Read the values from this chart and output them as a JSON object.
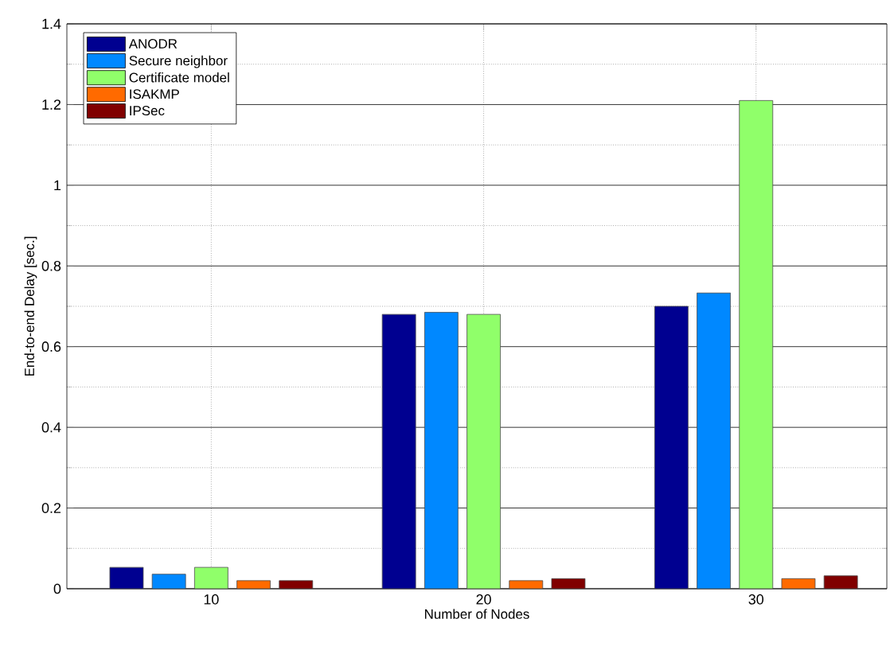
{
  "chart_data": {
    "type": "bar",
    "xlabel": "Number of Nodes",
    "ylabel": "End-to-end Delay [sec.]",
    "categories": [
      "10",
      "20",
      "30"
    ],
    "series": [
      {
        "name": "ANODR",
        "color": "#000090",
        "values": [
          0.053,
          0.68,
          0.7
        ]
      },
      {
        "name": "Secure neighbor",
        "color": "#0088ff",
        "values": [
          0.036,
          0.685,
          0.733
        ]
      },
      {
        "name": "Certificate model",
        "color": "#90ff6a",
        "values": [
          0.053,
          0.68,
          1.21
        ]
      },
      {
        "name": "ISAKMP",
        "color": "#ff6a00",
        "values": [
          0.02,
          0.02,
          0.025
        ]
      },
      {
        "name": "IPSec",
        "color": "#800000",
        "values": [
          0.02,
          0.025,
          0.032
        ]
      }
    ],
    "ylim": [
      0,
      1.4
    ],
    "yticks": [
      0,
      0.2,
      0.4,
      0.6,
      0.8,
      1,
      1.2,
      1.4
    ],
    "grid": true,
    "legend": "top left"
  }
}
